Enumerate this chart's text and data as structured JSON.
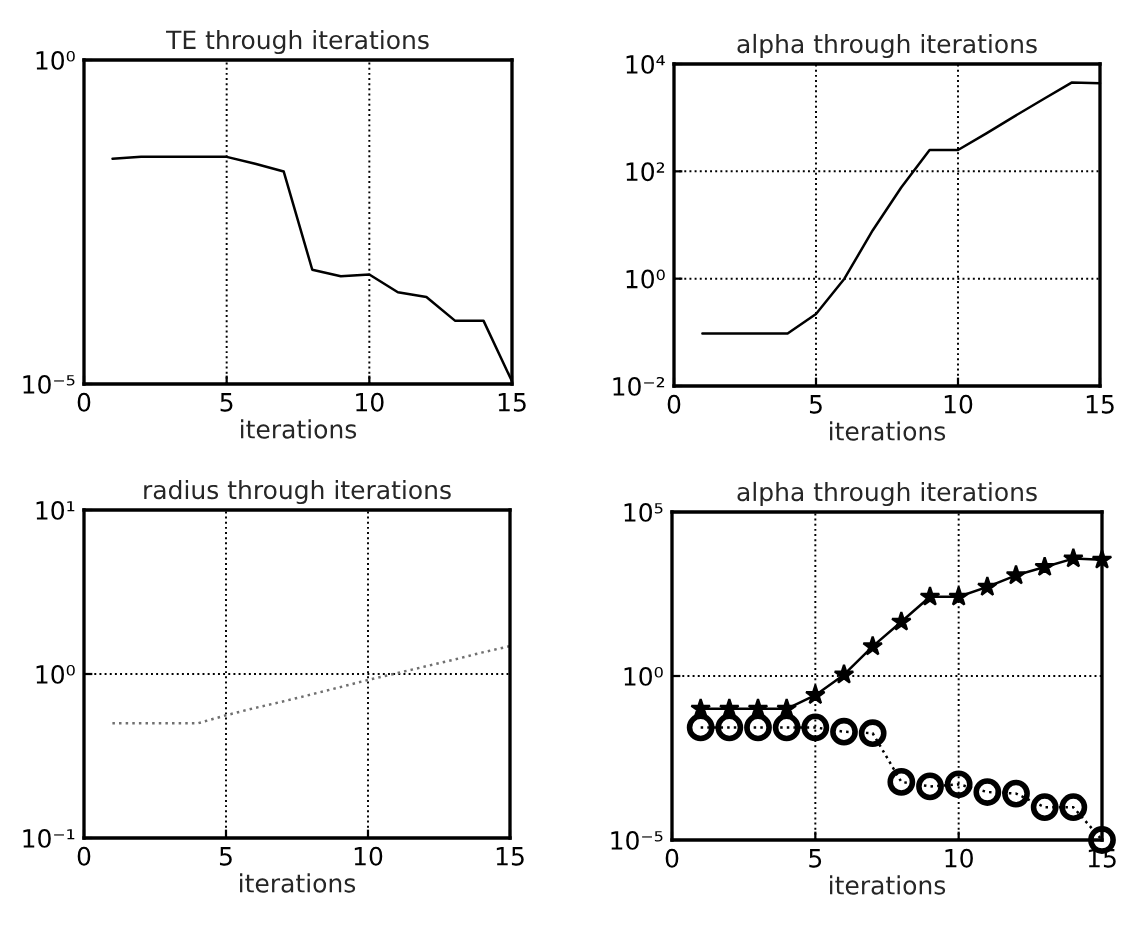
{
  "chart_data": [
    {
      "type": "line",
      "title": "TE through iterations",
      "xlabel": "iterations",
      "log": "y",
      "grid": true,
      "xlim": [
        0,
        15
      ],
      "xticks": [
        0,
        5,
        10,
        15
      ],
      "ylim": [
        1e-05,
        1
      ],
      "yticks": [
        {
          "value": 1e-05,
          "label": "10⁻⁵"
        },
        {
          "value": 1,
          "label": "10⁰"
        }
      ],
      "x": [
        1,
        2,
        3,
        4,
        5,
        6,
        7,
        8,
        9,
        10,
        11,
        12,
        13,
        14,
        15
      ],
      "series": [
        {
          "color": "#000000",
          "line_style": "solid",
          "values": [
            0.03,
            0.032,
            0.032,
            0.032,
            0.032,
            0.025,
            0.019,
            0.00058,
            0.00046,
            0.00049,
            0.00026,
            0.00022,
            9.5e-05,
            9.5e-05,
            1.1e-05
          ]
        }
      ]
    },
    {
      "type": "line",
      "title": "alpha through iterations",
      "xlabel": "iterations",
      "log": "y",
      "grid": true,
      "xlim": [
        0,
        15
      ],
      "xticks": [
        0,
        5,
        10,
        15
      ],
      "ylim": [
        0.01,
        10000
      ],
      "yticks": [
        {
          "value": 0.01,
          "label": "10⁻²"
        },
        {
          "value": 1,
          "label": "10⁰"
        },
        {
          "value": 100,
          "label": "10²"
        },
        {
          "value": 10000,
          "label": "10⁴"
        }
      ],
      "x": [
        1,
        2,
        3,
        4,
        5,
        6,
        7,
        8,
        9,
        10,
        11,
        12,
        13,
        14,
        15
      ],
      "series": [
        {
          "color": "#000000",
          "line_style": "solid",
          "values": [
            0.095,
            0.095,
            0.095,
            0.095,
            0.22,
            1,
            8,
            50,
            250,
            250,
            510,
            1070,
            2200,
            4500,
            4400
          ]
        }
      ]
    },
    {
      "type": "line",
      "title": "radius through iterations",
      "xlabel": "iterations",
      "log": "y",
      "grid": true,
      "xlim": [
        0,
        15
      ],
      "xticks": [
        0,
        5,
        10,
        15
      ],
      "ylim": [
        0.1,
        10
      ],
      "yticks": [
        {
          "value": 0.1,
          "label": "10⁻¹"
        },
        {
          "value": 1,
          "label": "10⁰"
        },
        {
          "value": 10,
          "label": "10¹"
        }
      ],
      "x": [
        1,
        2,
        3,
        4,
        5,
        6,
        7,
        8,
        9,
        10,
        11,
        12,
        13,
        14,
        15
      ],
      "series": [
        {
          "color": "#707070",
          "line_style": "dotted",
          "values": [
            0.5,
            0.5,
            0.5,
            0.5,
            0.56,
            0.62,
            0.68,
            0.75,
            0.83,
            0.92,
            1.01,
            1.11,
            1.22,
            1.35,
            1.48
          ]
        }
      ]
    },
    {
      "type": "line",
      "title": "alpha through iterations",
      "xlabel": "iterations",
      "log": "y",
      "grid": true,
      "xlim": [
        0,
        15
      ],
      "xticks": [
        0,
        5,
        10,
        15
      ],
      "ylim": [
        1e-05,
        100000
      ],
      "yticks": [
        {
          "value": 1e-05,
          "label": "10⁻⁵"
        },
        {
          "value": 1,
          "label": "10⁰"
        },
        {
          "value": 100000,
          "label": "10⁵"
        }
      ],
      "x": [
        1,
        2,
        3,
        4,
        5,
        6,
        7,
        8,
        9,
        10,
        11,
        12,
        13,
        14,
        15
      ],
      "series": [
        {
          "color": "#000000",
          "marker": "star",
          "line_style": "solid",
          "values": [
            0.1,
            0.1,
            0.1,
            0.1,
            0.26,
            1.1,
            8,
            45,
            260,
            260,
            520,
            1170,
            2100,
            3800,
            3500
          ]
        },
        {
          "color": "#000000",
          "marker": "circle",
          "line_style": "dotted",
          "values": [
            0.027,
            0.027,
            0.027,
            0.027,
            0.027,
            0.02,
            0.018,
            0.00059,
            0.00043,
            0.0005,
            0.00029,
            0.00026,
            0.0001,
            0.0001,
            1e-05
          ]
        }
      ]
    }
  ]
}
